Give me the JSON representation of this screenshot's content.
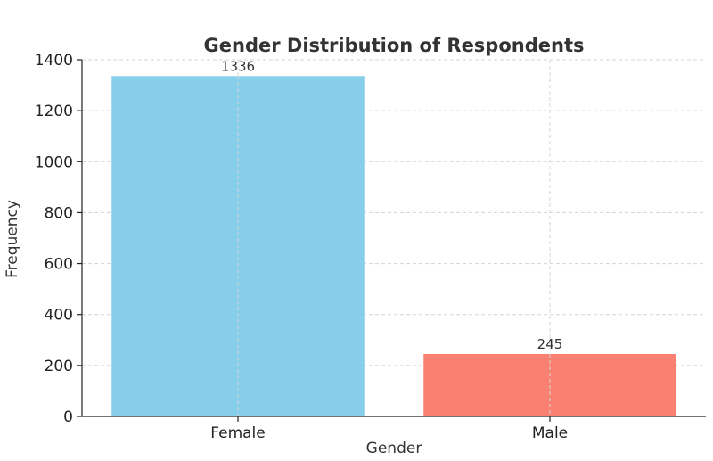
{
  "chart_data": {
    "type": "bar",
    "title": "Gender Distribution of Respondents",
    "xlabel": "Gender",
    "ylabel": "Frequency",
    "categories": [
      "Female",
      "Male"
    ],
    "values": [
      1336,
      245
    ],
    "data_labels": [
      "1336",
      "245"
    ],
    "colors": [
      "#87CEEB",
      "#FA8072"
    ],
    "ylim": [
      0,
      1400
    ],
    "yticks": [
      0,
      200,
      400,
      600,
      800,
      1000,
      1200,
      1400
    ],
    "ytick_labels": [
      "0",
      "200",
      "400",
      "600",
      "800",
      "1000",
      "1200",
      "1400"
    ],
    "grid": true,
    "legend": "none"
  }
}
